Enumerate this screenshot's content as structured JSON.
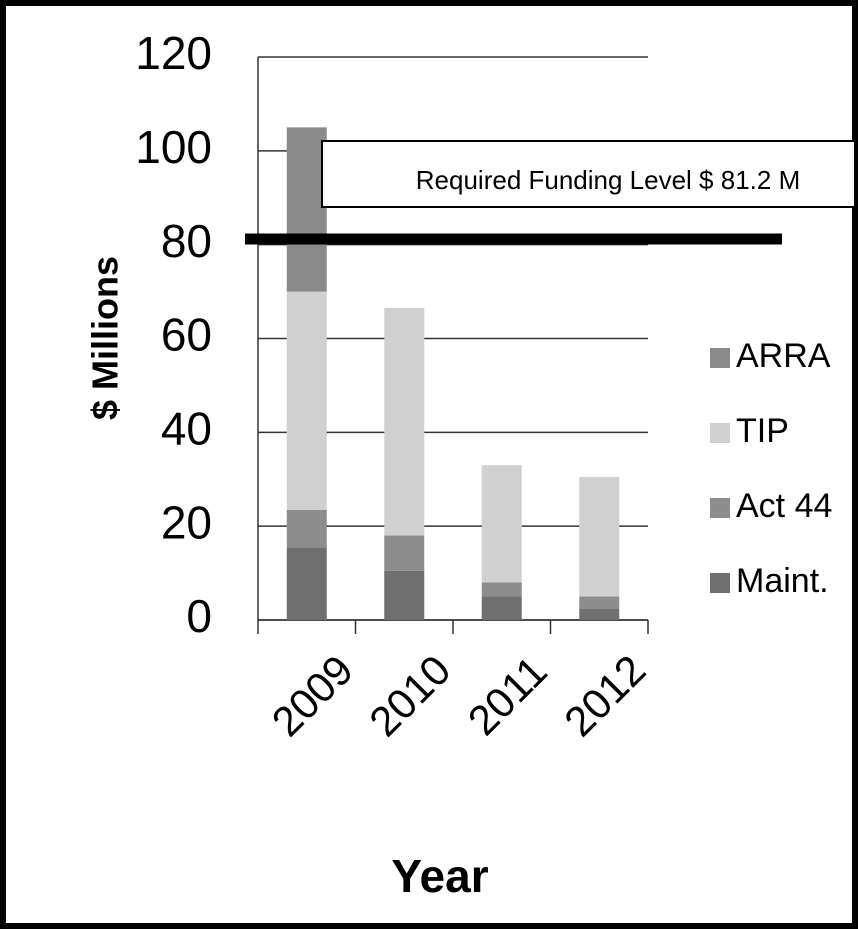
{
  "chart_data": {
    "type": "stacked_bar",
    "xlabel": "Year",
    "ylabel": "$ Millions",
    "categories": [
      "2009",
      "2010",
      "2011",
      "2012"
    ],
    "series": [
      {
        "name": "Maint.",
        "color": "#6f6f6f",
        "values": [
          15.5,
          10.5,
          5,
          2.5
        ]
      },
      {
        "name": "Act 44",
        "color": "#8d8d8d",
        "values": [
          8,
          7.5,
          3,
          2.5
        ]
      },
      {
        "name": "TIP",
        "color": "#d0d0d0",
        "values": [
          46.5,
          48.5,
          25,
          25.5
        ]
      },
      {
        "name": "ARRA",
        "color": "#8a8a8a",
        "values": [
          35,
          0,
          0,
          0
        ]
      }
    ],
    "ylim": [
      0,
      120
    ],
    "yticks": [
      0,
      20,
      40,
      60,
      80,
      100,
      120
    ],
    "grid": true,
    "reference_line": {
      "value": 81.2,
      "label": "Required Funding Level $ 81.2 M"
    }
  }
}
